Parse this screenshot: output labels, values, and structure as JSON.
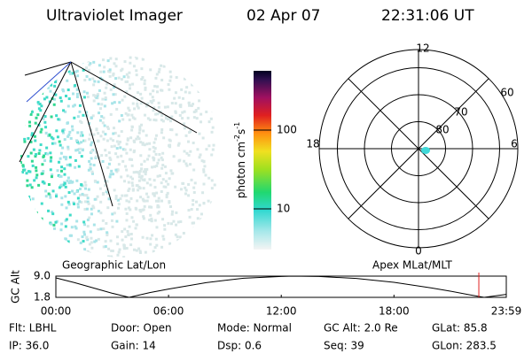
{
  "header": {
    "title": "Ultraviolet Imager",
    "date": "02 Apr 07",
    "time": "22:31:06 UT"
  },
  "colorbar": {
    "label": "photon cm",
    "exp1": "-2",
    "unit2": "s",
    "exp2": "-1",
    "ticks": [
      10,
      100
    ]
  },
  "polar": {
    "mlt_labels": [
      "12",
      "6",
      "0",
      "18"
    ],
    "lat_rings": [
      60,
      70,
      80
    ]
  },
  "orbit_plot": {
    "left_label": "Geographic Lat/Lon",
    "right_label": "Apex MLat/MLT",
    "ylabel": "GC Alt",
    "ylim": [
      1.8,
      9.0
    ],
    "yticks": [
      {
        "value": 9.0,
        "label": "9.0"
      },
      {
        "value": 1.8,
        "label": "1.8"
      }
    ],
    "xlim": [
      0,
      23.98
    ],
    "xticks": [
      {
        "value": 0,
        "label": "00:00"
      },
      {
        "value": 6,
        "label": "06:00"
      },
      {
        "value": 12,
        "label": "12:00"
      },
      {
        "value": 18,
        "label": "18:00"
      },
      {
        "value": 23.98,
        "label": "23:59"
      }
    ],
    "x": [
      0,
      1,
      2,
      3,
      3.9,
      5,
      6,
      8,
      10,
      12,
      12.6,
      14,
      16,
      18,
      20,
      21,
      22,
      22.8,
      23.98
    ],
    "values": [
      8.4,
      6.8,
      5.0,
      3.2,
      1.8,
      3.4,
      4.6,
      6.8,
      8.3,
      8.9,
      9.0,
      8.9,
      8.2,
      6.9,
      5.0,
      3.9,
      2.7,
      1.8,
      2.8
    ],
    "marker_x": 22.518
  },
  "info": [
    [
      "Flt: LBHL",
      "Door: Open",
      "Mode: Normal",
      "GC Alt: 2.0 Re",
      "GLat: 85.8"
    ],
    [
      "IP: 36.0",
      "Gain: 14",
      "Dsp:    0.6",
      "Seq: 39",
      "GLon: 283.5"
    ]
  ]
}
